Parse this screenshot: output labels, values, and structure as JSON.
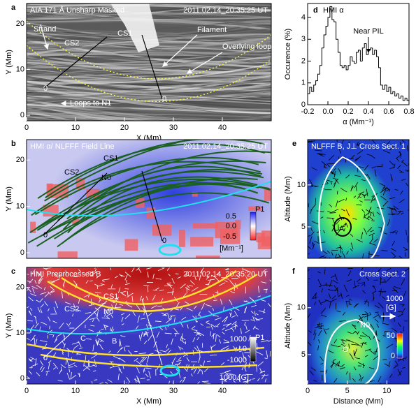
{
  "chart_data": [
    {
      "type": "image",
      "panel": "a",
      "title": "AIA 171 Å Unsharp Masked",
      "timestamp": "2011.02.14_20:35:25 UT",
      "xlabel": "X (Mm)",
      "ylabel": "Y (Mm)",
      "xlim": [
        0,
        50
      ],
      "ylim": [
        -1.2,
        24.4
      ],
      "xticks": [
        0,
        10,
        20,
        30,
        40
      ],
      "yticks": [
        0,
        10,
        20
      ],
      "annotations": [
        "Strand",
        "CS2",
        "CS1",
        "Filament",
        "Overlying loops",
        "Loops to N1",
        "0",
        "0"
      ]
    },
    {
      "type": "image",
      "panel": "b",
      "title": "HMI α/ NLFFF Field Line",
      "timestamp": "2011.02.14_20:35:25 UT",
      "ylabel": "Y (Mm)",
      "xlim": [
        0,
        50
      ],
      "ylim": [
        -1.2,
        24.4
      ],
      "yticks": [
        0,
        10,
        20
      ],
      "annotations": [
        "CS1",
        "CS2",
        "N0",
        "P1",
        "0",
        "0"
      ],
      "colorbar": [
        "0.5",
        "0.0",
        "-0.5",
        "[Mm⁻¹]"
      ]
    },
    {
      "type": "image",
      "panel": "c",
      "title": "HMI Preprocessed B",
      "timestamp": "2011.02.14_20:35:20 UT",
      "xlabel": "X (Mm)",
      "ylabel": "Y (Mm)",
      "xlim": [
        0,
        50
      ],
      "ylim": [
        -1.2,
        24.4
      ],
      "xticks": [
        0,
        10,
        20,
        30,
        40
      ],
      "yticks": [
        0,
        10,
        20
      ],
      "annotations": [
        "CS1",
        "CS2",
        "N0",
        "P1",
        "A",
        "B",
        "C",
        "0"
      ],
      "colorbar": [
        "1000",
        "0",
        "-1000",
        "1000 [G]"
      ]
    },
    {
      "type": "histogram",
      "panel": "d",
      "title": "HMI α",
      "xlabel": "α (Mm⁻¹)",
      "ylabel": "Occurence (%)",
      "annotations": [
        "Near PIL"
      ],
      "color": "#000000",
      "bins": [
        -0.2,
        -0.18,
        -0.16,
        -0.14,
        -0.12,
        -0.1,
        -0.08,
        -0.06,
        -0.04,
        -0.02,
        0,
        0.02,
        0.04,
        0.06,
        0.08,
        0.1,
        0.12,
        0.14,
        0.16,
        0.18,
        0.2,
        0.22,
        0.24,
        0.26,
        0.28,
        0.3,
        0.32,
        0.34,
        0.36,
        0.38,
        0.4,
        0.42,
        0.44,
        0.46,
        0.48,
        0.5,
        0.52,
        0.54,
        0.56,
        0.58,
        0.6,
        0.62,
        0.64,
        0.66,
        0.68,
        0.7,
        0.72,
        0.74,
        0.76,
        0.78,
        0.8
      ],
      "values": [
        0.5,
        0.8,
        0.6,
        0.9,
        1.1,
        1.4,
        1.8,
        2.6,
        3.2,
        3.6,
        4.0,
        4.5,
        3.9,
        3.8,
        3.0,
        2.4,
        1.8,
        1.7,
        1.8,
        1.6,
        1.8,
        2.2,
        2.0,
        1.9,
        2.4,
        2.5,
        2.0,
        2.6,
        2.8,
        2.3,
        2.5,
        2.6,
        2.3,
        2.5,
        2.2,
        1.7,
        0.9,
        0.7,
        0.9,
        0.6,
        0.8,
        0.5,
        0.6,
        0.4,
        0.5,
        0.3,
        0.4,
        0.2,
        0.3,
        0.2
      ],
      "xlim": [
        -0.2,
        0.8
      ],
      "ylim": [
        0,
        4.64
      ],
      "xticks": [
        -0.2,
        {
          "value": 0,
          "label": "0.0"
        },
        0.2,
        0.4,
        0.6,
        0.8
      ],
      "yticks": [
        0,
        1,
        2,
        3,
        4
      ]
    },
    {
      "type": "image",
      "panel": "e",
      "title": "NLFFF B, J⊥",
      "timestamp": "Cross Sect. 1",
      "ylabel": "Altitude (Mm)",
      "xlim": [
        0,
        12.8
      ],
      "ylim": [
        1.25,
        15.4
      ],
      "yticks": [
        5,
        10
      ],
      "annotations": [
        "A"
      ]
    },
    {
      "type": "image",
      "panel": "f",
      "timestamp": "Cross Sect. 2",
      "xlabel": "Distance (Mm)",
      "ylabel": "Altitude (Mm)",
      "xlim": [
        0,
        12.8
      ],
      "ylim": [
        1.87,
        14.3
      ],
      "xticks": [
        0,
        5,
        10
      ],
      "yticks": [
        5,
        10
      ],
      "annotations": [
        "N0",
        "O",
        "1000",
        "[G]"
      ],
      "colorbar": [
        "50",
        "0"
      ]
    }
  ]
}
